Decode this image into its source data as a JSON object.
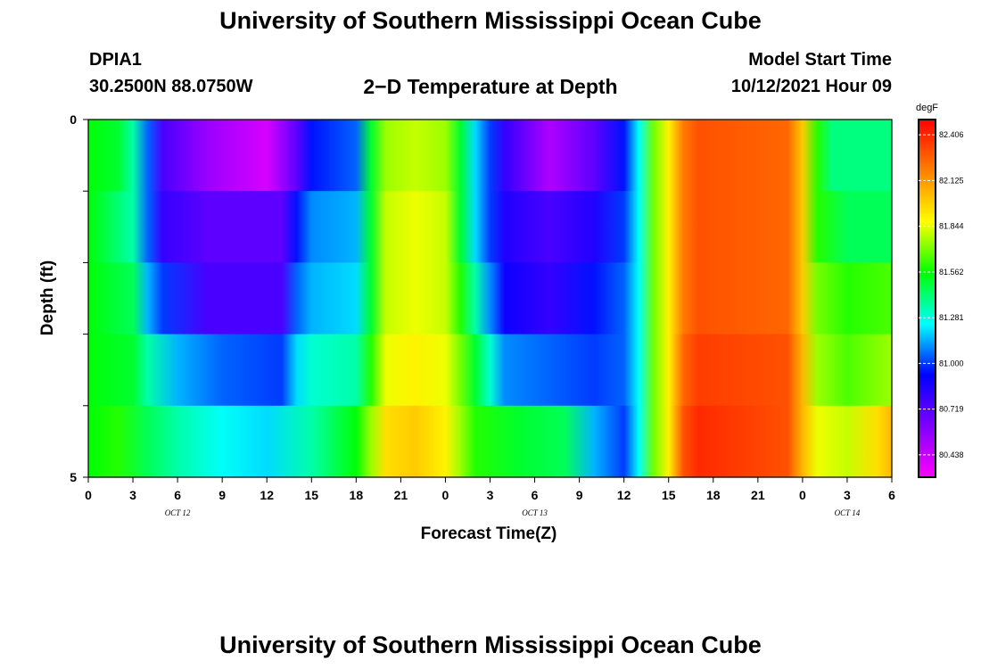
{
  "header": {
    "title_top": "University of Southern Mississippi Ocean Cube",
    "title_bottom": "University of Southern Mississippi Ocean Cube",
    "station_id": "DPIA1",
    "station_coords": "30.2500N  88.0750W",
    "model_label": "Model Start Time",
    "model_time": "10/12/2021 Hour 09"
  },
  "chart_data": {
    "type": "heatmap",
    "title": "2−D Temperature at Depth",
    "xlabel": "Forecast Time(Z)",
    "ylabel": "Depth (ft)",
    "y_ticks": [
      "0",
      "5"
    ],
    "y_range": [
      0,
      5
    ],
    "x_tick_labels": [
      "0",
      "3",
      "6",
      "9",
      "12",
      "15",
      "18",
      "21",
      "0",
      "3",
      "6",
      "9",
      "12",
      "15",
      "18",
      "21",
      "0",
      "3",
      "6"
    ],
    "date_labels": [
      {
        "text": "OCT 12",
        "at_hour": 6
      },
      {
        "text": "OCT 13",
        "at_hour": 30
      },
      {
        "text": "OCT 14",
        "at_hour": 51
      }
    ],
    "x_range_hours": [
      0,
      54
    ],
    "colorbar": {
      "unit": "degF",
      "range": [
        80.3,
        82.5
      ],
      "ticks": [
        "82.406",
        "82.125",
        "81.844",
        "81.562",
        "81.281",
        "81.000",
        "80.719",
        "80.438"
      ],
      "colors": [
        "#ff00ff",
        "#8000ff",
        "#0000ff",
        "#00ffff",
        "#00ff00",
        "#ffff00",
        "#ff8000",
        "#ff0000"
      ]
    },
    "depth_rows": [
      "0-1 ft",
      "1-2 ft",
      "2-3 ft",
      "3-4 ft",
      "4-5 ft"
    ],
    "temperature_keyframes": [
      [
        [
          0,
          81.55
        ],
        [
          2,
          81.5
        ],
        [
          3,
          81.35
        ],
        [
          4,
          81.05
        ],
        [
          5,
          80.75
        ],
        [
          8,
          80.55
        ],
        [
          12,
          80.4
        ],
        [
          14,
          80.7
        ],
        [
          15,
          80.95
        ],
        [
          18,
          81.05
        ],
        [
          19,
          81.5
        ],
        [
          20,
          81.75
        ],
        [
          22,
          81.8
        ],
        [
          24,
          81.75
        ],
        [
          25,
          81.5
        ],
        [
          26,
          81.2
        ],
        [
          27,
          81.0
        ],
        [
          28,
          80.8
        ],
        [
          31,
          80.5
        ],
        [
          34,
          80.7
        ],
        [
          36,
          80.95
        ],
        [
          37,
          81.25
        ],
        [
          38,
          81.7
        ],
        [
          39,
          81.9
        ],
        [
          40,
          82.2
        ],
        [
          41,
          82.3
        ],
        [
          47,
          82.25
        ],
        [
          48,
          82.0
        ],
        [
          49,
          81.6
        ],
        [
          50,
          81.4
        ],
        [
          54,
          81.4
        ]
      ],
      [
        [
          0,
          81.55
        ],
        [
          3,
          81.35
        ],
        [
          4,
          81.05
        ],
        [
          5,
          80.8
        ],
        [
          8,
          80.7
        ],
        [
          13,
          80.7
        ],
        [
          14,
          80.95
        ],
        [
          15,
          81.1
        ],
        [
          18,
          81.15
        ],
        [
          19,
          81.5
        ],
        [
          20,
          81.8
        ],
        [
          22,
          81.85
        ],
        [
          24,
          81.8
        ],
        [
          25,
          81.5
        ],
        [
          26,
          81.2
        ],
        [
          27,
          81.0
        ],
        [
          28,
          80.85
        ],
        [
          31,
          80.75
        ],
        [
          34,
          80.85
        ],
        [
          36,
          81.0
        ],
        [
          37,
          81.25
        ],
        [
          38,
          81.7
        ],
        [
          39,
          81.9
        ],
        [
          40,
          82.2
        ],
        [
          41,
          82.3
        ],
        [
          47,
          82.25
        ],
        [
          48,
          82.0
        ],
        [
          49,
          81.6
        ],
        [
          51,
          81.45
        ],
        [
          54,
          81.45
        ]
      ],
      [
        [
          0,
          81.55
        ],
        [
          3,
          81.45
        ],
        [
          4,
          81.15
        ],
        [
          5,
          81.0
        ],
        [
          8,
          80.75
        ],
        [
          13,
          80.75
        ],
        [
          14,
          81.05
        ],
        [
          15,
          81.15
        ],
        [
          18,
          81.2
        ],
        [
          19,
          81.5
        ],
        [
          20,
          81.8
        ],
        [
          22,
          81.85
        ],
        [
          24,
          81.8
        ],
        [
          25,
          81.6
        ],
        [
          26,
          81.35
        ],
        [
          27,
          81.1
        ],
        [
          28,
          80.9
        ],
        [
          31,
          80.8
        ],
        [
          34,
          80.95
        ],
        [
          36,
          81.05
        ],
        [
          37,
          81.25
        ],
        [
          38,
          81.7
        ],
        [
          39,
          81.9
        ],
        [
          40,
          82.2
        ],
        [
          41,
          82.3
        ],
        [
          47,
          82.25
        ],
        [
          48,
          82.0
        ],
        [
          49,
          81.7
        ],
        [
          51,
          81.6
        ],
        [
          54,
          81.65
        ]
      ],
      [
        [
          0,
          81.55
        ],
        [
          3,
          81.5
        ],
        [
          4,
          81.35
        ],
        [
          6,
          81.15
        ],
        [
          9,
          81.05
        ],
        [
          13,
          81.0
        ],
        [
          14,
          81.2
        ],
        [
          15,
          81.3
        ],
        [
          18,
          81.35
        ],
        [
          19,
          81.6
        ],
        [
          20,
          81.85
        ],
        [
          22,
          81.9
        ],
        [
          24,
          81.85
        ],
        [
          25,
          81.7
        ],
        [
          26,
          81.5
        ],
        [
          27,
          81.3
        ],
        [
          28,
          81.1
        ],
        [
          31,
          81.05
        ],
        [
          34,
          81.0
        ],
        [
          36,
          81.05
        ],
        [
          37,
          81.25
        ],
        [
          38,
          81.7
        ],
        [
          39,
          81.9
        ],
        [
          40,
          82.25
        ],
        [
          41,
          82.35
        ],
        [
          47,
          82.3
        ],
        [
          48,
          82.05
        ],
        [
          49,
          81.75
        ],
        [
          51,
          81.65
        ],
        [
          54,
          81.75
        ]
      ],
      [
        [
          0,
          81.55
        ],
        [
          2,
          81.6
        ],
        [
          4,
          81.45
        ],
        [
          6,
          81.35
        ],
        [
          9,
          81.25
        ],
        [
          12,
          81.2
        ],
        [
          15,
          81.35
        ],
        [
          18,
          81.55
        ],
        [
          19,
          81.75
        ],
        [
          20,
          81.95
        ],
        [
          22,
          82.0
        ],
        [
          24,
          81.9
        ],
        [
          25,
          81.75
        ],
        [
          26,
          81.6
        ],
        [
          29,
          81.5
        ],
        [
          32,
          81.45
        ],
        [
          34,
          81.15
        ],
        [
          36,
          81.0
        ],
        [
          37,
          81.25
        ],
        [
          38,
          81.7
        ],
        [
          39,
          81.9
        ],
        [
          40,
          82.3
        ],
        [
          41,
          82.4
        ],
        [
          47,
          82.3
        ],
        [
          48,
          82.05
        ],
        [
          49,
          81.85
        ],
        [
          51,
          81.8
        ],
        [
          53,
          81.95
        ],
        [
          54,
          82.05
        ]
      ]
    ]
  }
}
